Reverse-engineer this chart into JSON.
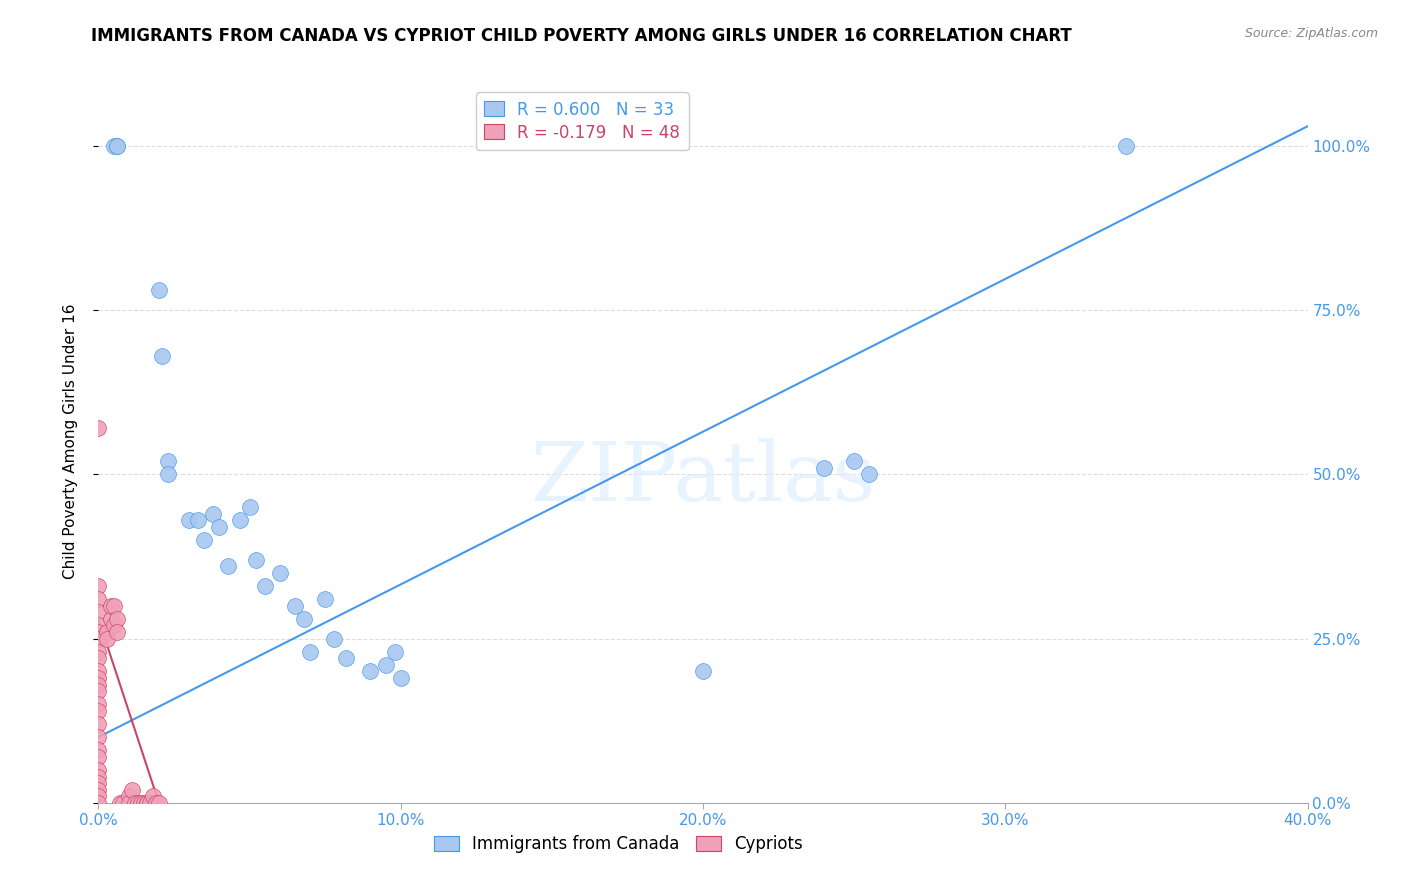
{
  "title": "IMMIGRANTS FROM CANADA VS CYPRIOT CHILD POVERTY AMONG GIRLS UNDER 16 CORRELATION CHART",
  "source": "Source: ZipAtlas.com",
  "ylabel": "Child Poverty Among Girls Under 16",
  "x_tick_labels": [
    "0.0%",
    "10.0%",
    "20.0%",
    "30.0%",
    "40.0%"
  ],
  "y_tick_labels": [
    "0.0%",
    "25.0%",
    "50.0%",
    "75.0%",
    "100.0%"
  ],
  "x_lim": [
    0.0,
    0.4
  ],
  "y_lim": [
    0.0,
    1.1
  ],
  "blue_R": 0.6,
  "blue_N": 33,
  "pink_R": -0.179,
  "pink_N": 48,
  "blue_color": "#a8c8f0",
  "pink_color": "#f0a0b8",
  "blue_line_color": "#4499ee",
  "pink_line_color": "#cc4466",
  "legend_blue_label": "Immigrants from Canada",
  "legend_pink_label": "Cypriots",
  "watermark": "ZIPatlas",
  "blue_scatter_x": [
    0.005,
    0.006,
    0.006,
    0.02,
    0.021,
    0.023,
    0.023,
    0.03,
    0.033,
    0.035,
    0.038,
    0.04,
    0.043,
    0.047,
    0.05,
    0.052,
    0.055,
    0.06,
    0.065,
    0.068,
    0.07,
    0.075,
    0.078,
    0.082,
    0.09,
    0.095,
    0.098,
    0.1,
    0.2,
    0.24,
    0.25,
    0.255,
    0.34
  ],
  "blue_scatter_y": [
    1.0,
    1.0,
    1.0,
    0.78,
    0.68,
    0.52,
    0.5,
    0.43,
    0.43,
    0.4,
    0.44,
    0.42,
    0.36,
    0.43,
    0.45,
    0.37,
    0.33,
    0.35,
    0.3,
    0.28,
    0.23,
    0.31,
    0.25,
    0.22,
    0.2,
    0.21,
    0.23,
    0.19,
    0.2,
    0.51,
    0.52,
    0.5,
    1.0
  ],
  "pink_scatter_x": [
    0.0,
    0.0,
    0.0,
    0.0,
    0.0,
    0.0,
    0.0,
    0.0,
    0.0,
    0.0,
    0.0,
    0.0,
    0.0,
    0.0,
    0.0,
    0.0,
    0.0,
    0.0,
    0.0,
    0.0,
    0.0,
    0.0,
    0.0,
    0.0,
    0.0,
    0.003,
    0.003,
    0.004,
    0.004,
    0.005,
    0.005,
    0.006,
    0.006,
    0.007,
    0.008,
    0.01,
    0.01,
    0.011,
    0.012,
    0.013,
    0.014,
    0.015,
    0.016,
    0.016,
    0.017,
    0.018,
    0.019,
    0.02
  ],
  "pink_scatter_y": [
    0.57,
    0.33,
    0.31,
    0.29,
    0.27,
    0.26,
    0.25,
    0.23,
    0.22,
    0.2,
    0.19,
    0.18,
    0.17,
    0.15,
    0.14,
    0.12,
    0.1,
    0.08,
    0.07,
    0.05,
    0.04,
    0.03,
    0.02,
    0.01,
    0.0,
    0.26,
    0.25,
    0.28,
    0.3,
    0.3,
    0.27,
    0.28,
    0.26,
    0.0,
    0.0,
    0.01,
    0.0,
    0.02,
    0.0,
    0.0,
    0.0,
    0.0,
    0.0,
    0.0,
    0.0,
    0.01,
    0.0,
    0.0
  ],
  "blue_trendline_x": [
    0.0,
    0.4
  ],
  "blue_trendline_y": [
    0.1,
    1.03
  ],
  "pink_trendline_x": [
    0.0,
    0.02
  ],
  "pink_trendline_y": [
    0.28,
    0.0
  ],
  "grid_color": "#dddddd",
  "background_color": "#ffffff",
  "title_fontsize": 12,
  "axis_label_fontsize": 11,
  "tick_fontsize": 11,
  "legend_fontsize": 12
}
